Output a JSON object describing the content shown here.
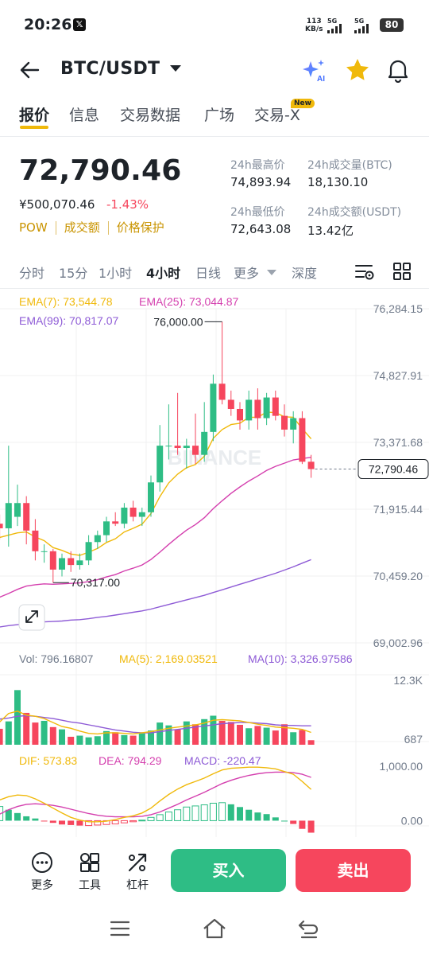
{
  "status_bar": {
    "time": "20:26",
    "app_badge": "𝕏",
    "net_speed_value": "113",
    "net_speed_unit": "KB/s",
    "sim1": "5G",
    "sim2": "5G",
    "battery": "80"
  },
  "header": {
    "pair": "BTC/USDT"
  },
  "tabs": [
    {
      "label": "报价",
      "active": true
    },
    {
      "label": "信息"
    },
    {
      "label": "交易数据"
    },
    {
      "label": "广场"
    },
    {
      "label": "交易-X",
      "badge": "New"
    }
  ],
  "ticker": {
    "last_price": "72,790.46",
    "cny_price": "¥500,070.46",
    "change": "-1.43%",
    "tags": [
      "POW",
      "成交额",
      "价格保护"
    ],
    "high_label": "24h最高价",
    "high_value": "74,893.94",
    "vol_btc_label": "24h成交量(BTC)",
    "vol_btc_value": "18,130.10",
    "low_label": "24h最低价",
    "low_value": "72,643.08",
    "vol_usdt_label": "24h成交额(USDT)",
    "vol_usdt_value": "13.42亿"
  },
  "intervals": [
    "分时",
    "15分",
    "1小时",
    "4小时",
    "日线",
    "更多",
    "深度"
  ],
  "active_interval": "4小时",
  "colors": {
    "up": "#2ebd85",
    "down": "#f6465d",
    "ema7": "#f0b90b",
    "ema25": "#d43fae",
    "ema99": "#8e5bd6",
    "accent": "#f0b90b"
  },
  "chart_data": {
    "type": "candlestick",
    "indicators": {
      "ema7": "EMA(7): 73,544.78",
      "ema25": "EMA(25): 73,044.87",
      "ema99": "EMA(99): 70,817.07"
    },
    "price_axis": [
      "76,284.15",
      "74,827.91",
      "73,371.68",
      "71,915.44",
      "70,459.20",
      "69,002.96"
    ],
    "ylim": [
      69002.96,
      76284.15
    ],
    "high_marker": "76,000.00",
    "low_marker": "70,317.00",
    "last_price_tag": "72,790.46",
    "watermark": "BINANCE",
    "candles": [
      {
        "o": 71600,
        "h": 71800,
        "l": 71250,
        "c": 71500
      },
      {
        "o": 71500,
        "h": 73300,
        "l": 71100,
        "c": 72050
      },
      {
        "o": 71750,
        "h": 72450,
        "l": 71550,
        "c": 72050
      },
      {
        "o": 72050,
        "h": 72200,
        "l": 71150,
        "c": 71450
      },
      {
        "o": 71450,
        "h": 71700,
        "l": 70800,
        "c": 71000
      },
      {
        "o": 71000,
        "h": 71150,
        "l": 70750,
        "c": 71000
      },
      {
        "o": 71000,
        "h": 71050,
        "l": 70317,
        "c": 70600
      },
      {
        "o": 70600,
        "h": 70950,
        "l": 70450,
        "c": 70850
      },
      {
        "o": 70850,
        "h": 71000,
        "l": 70550,
        "c": 70700
      },
      {
        "o": 70700,
        "h": 70950,
        "l": 70600,
        "c": 70800
      },
      {
        "o": 70800,
        "h": 71350,
        "l": 70700,
        "c": 71200
      },
      {
        "o": 71200,
        "h": 71450,
        "l": 71050,
        "c": 71350
      },
      {
        "o": 71350,
        "h": 71750,
        "l": 71200,
        "c": 71650
      },
      {
        "o": 71650,
        "h": 71850,
        "l": 71550,
        "c": 71600
      },
      {
        "o": 71600,
        "h": 72050,
        "l": 71500,
        "c": 71950
      },
      {
        "o": 71950,
        "h": 72100,
        "l": 71650,
        "c": 71750
      },
      {
        "o": 71750,
        "h": 71950,
        "l": 71550,
        "c": 71850
      },
      {
        "o": 71850,
        "h": 72650,
        "l": 71750,
        "c": 72500
      },
      {
        "o": 72500,
        "h": 73750,
        "l": 72300,
        "c": 73300
      },
      {
        "o": 73300,
        "h": 74200,
        "l": 73000,
        "c": 73300
      },
      {
        "o": 73300,
        "h": 74450,
        "l": 73100,
        "c": 73250
      },
      {
        "o": 73250,
        "h": 73450,
        "l": 72800,
        "c": 73300
      },
      {
        "o": 73300,
        "h": 74000,
        "l": 72900,
        "c": 73100
      },
      {
        "o": 73100,
        "h": 74250,
        "l": 72950,
        "c": 73600
      },
      {
        "o": 73600,
        "h": 74850,
        "l": 73400,
        "c": 74650
      },
      {
        "o": 74650,
        "h": 76000,
        "l": 74200,
        "c": 74300
      },
      {
        "o": 74300,
        "h": 74500,
        "l": 73950,
        "c": 74100
      },
      {
        "o": 74100,
        "h": 74250,
        "l": 73650,
        "c": 73850
      },
      {
        "o": 73850,
        "h": 74500,
        "l": 73650,
        "c": 74300
      },
      {
        "o": 74300,
        "h": 74550,
        "l": 73650,
        "c": 73900
      },
      {
        "o": 73900,
        "h": 74450,
        "l": 73750,
        "c": 74350
      },
      {
        "o": 74350,
        "h": 74500,
        "l": 73850,
        "c": 73950
      },
      {
        "o": 73950,
        "h": 74200,
        "l": 73500,
        "c": 73650
      },
      {
        "o": 73650,
        "h": 74050,
        "l": 73350,
        "c": 73900
      },
      {
        "o": 73900,
        "h": 74050,
        "l": 72900,
        "c": 72950
      },
      {
        "o": 72950,
        "h": 73100,
        "l": 72600,
        "c": 72790
      }
    ],
    "ema7_values": [
      71300,
      71350,
      71400,
      71420,
      71310,
      71230,
      71080,
      71020,
      70940,
      70910,
      70980,
      71060,
      71190,
      71270,
      71420,
      71500,
      71590,
      71820,
      72190,
      72490,
      72680,
      72820,
      72890,
      73070,
      73460,
      73650,
      73760,
      73790,
      73920,
      73920,
      74030,
      74020,
      73930,
      73920,
      73670,
      73450
    ],
    "ema25_values": [
      70000,
      70080,
      70170,
      70240,
      70270,
      70290,
      70280,
      70290,
      70300,
      70310,
      70340,
      70380,
      70440,
      70490,
      70570,
      70630,
      70700,
      70820,
      70980,
      71150,
      71310,
      71460,
      71580,
      71730,
      71930,
      72100,
      72260,
      72400,
      72530,
      72640,
      72760,
      72850,
      72920,
      72990,
      73020,
      73045
    ],
    "ema99_values": [
      69350,
      69380,
      69400,
      69420,
      69440,
      69460,
      69470,
      69480,
      69500,
      69510,
      69530,
      69560,
      69580,
      69610,
      69640,
      69670,
      69700,
      69740,
      69790,
      69840,
      69890,
      69940,
      69990,
      70040,
      70100,
      70160,
      70220,
      70280,
      70340,
      70400,
      70460,
      70520,
      70590,
      70660,
      70740,
      70817
    ],
    "volume": {
      "label": "Vol: 796.16807",
      "ma5": "MA(5): 2,169.03521",
      "ma10": "MA(10): 3,326.97586",
      "axis": [
        "12.3K",
        "687"
      ],
      "values": [
        2800,
        4100,
        9600,
        5600,
        3900,
        4200,
        3100,
        2700,
        1400,
        1600,
        1300,
        1500,
        2400,
        2200,
        1700,
        1600,
        2000,
        2500,
        3900,
        3400,
        2700,
        4100,
        3600,
        4500,
        5100,
        4200,
        4000,
        3500,
        2900,
        3300,
        3000,
        2500,
        3600,
        2200,
        2600,
        800
      ],
      "ma5_values": [
        4000,
        5500,
        5900,
        5200,
        5000,
        4600,
        3900,
        3200,
        2900,
        2400,
        2000,
        1900,
        2100,
        2100,
        2000,
        1900,
        2100,
        2300,
        2600,
        2900,
        3100,
        3300,
        3500,
        3800,
        4300,
        4400,
        4300,
        4200,
        3900,
        3600,
        3400,
        3100,
        3000,
        2900,
        2700,
        2169
      ],
      "ma10_values": [
        4500,
        4700,
        5000,
        5100,
        5000,
        4800,
        4600,
        4300,
        4000,
        3800,
        3500,
        3200,
        2900,
        2600,
        2400,
        2200,
        2100,
        2100,
        2300,
        2500,
        2700,
        2900,
        3100,
        3300,
        3500,
        3700,
        3800,
        3900,
        3900,
        3800,
        3700,
        3500,
        3400,
        3400,
        3327,
        3327
      ]
    },
    "macd": {
      "dif": "DIF: 573.83",
      "dea": "DEA: 794.29",
      "macd": "MACD: -220.47",
      "axis": [
        "1,000.00",
        "0.00"
      ],
      "hist": [
        260,
        200,
        140,
        80,
        40,
        -10,
        -40,
        -70,
        -80,
        -90,
        -90,
        -80,
        -70,
        -60,
        -40,
        -20,
        10,
        60,
        110,
        160,
        200,
        250,
        270,
        290,
        320,
        330,
        300,
        250,
        200,
        150,
        120,
        60,
        0,
        -60,
        -150,
        -220
      ],
      "dif_values": [
        380,
        440,
        470,
        460,
        400,
        320,
        230,
        140,
        60,
        10,
        -20,
        -20,
        -10,
        20,
        60,
        90,
        140,
        230,
        360,
        480,
        580,
        660,
        720,
        780,
        860,
        930,
        960,
        970,
        980,
        980,
        970,
        950,
        900,
        850,
        720,
        574
      ],
      "dea_values": [
        120,
        200,
        260,
        300,
        310,
        300,
        280,
        250,
        210,
        170,
        130,
        100,
        80,
        70,
        70,
        70,
        80,
        110,
        160,
        230,
        300,
        380,
        450,
        520,
        600,
        680,
        740,
        790,
        830,
        860,
        880,
        890,
        890,
        880,
        850,
        794
      ],
      "ylim": [
        -300,
        1100
      ]
    }
  },
  "bottom_bar": {
    "more": "更多",
    "tools": "工具",
    "leverage": "杠杆",
    "buy": "买入",
    "sell": "卖出"
  }
}
